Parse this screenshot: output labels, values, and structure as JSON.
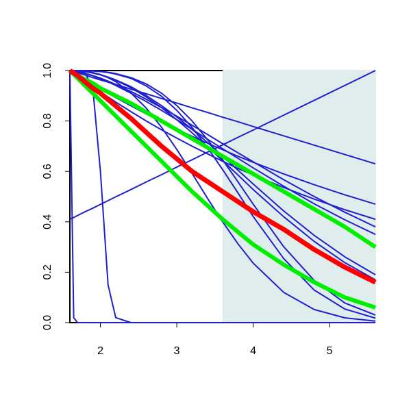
{
  "chart_data": {
    "type": "line",
    "x": [
      1.6,
      1.65,
      1.7,
      1.8,
      1.9,
      2.0,
      2.1,
      2.2,
      2.4,
      2.6,
      2.8,
      3.0,
      3.2,
      3.4,
      3.6,
      3.8,
      4.0,
      4.4,
      4.8,
      5.2,
      5.6
    ],
    "xlim": [
      1.6,
      5.6
    ],
    "ylim": [
      0,
      1
    ],
    "xticks": [
      2,
      3,
      4,
      5
    ],
    "yticks": [
      {
        "value": 0,
        "label": "0.0"
      },
      {
        "value": 0.2,
        "label": "0.2"
      },
      {
        "value": 0.4,
        "label": "0.4"
      },
      {
        "value": 0.6,
        "label": "0.6"
      },
      {
        "value": 0.8,
        "label": "0.8"
      },
      {
        "value": 1,
        "label": "1.0"
      }
    ],
    "shade": {
      "xlim": [
        3.6,
        5.6
      ],
      "color": "#e0eded"
    },
    "series": [
      {
        "color": "#1f1fd0",
        "line_width": 2,
        "values": [
          0.41,
          0.417,
          0.425,
          0.44,
          0.454,
          0.469,
          0.484,
          0.499,
          0.528,
          0.558,
          0.587,
          0.617,
          0.646,
          0.676,
          0.705,
          0.735,
          0.764,
          0.823,
          0.882,
          0.941,
          1.0
        ]
      },
      {
        "color": "#1f1fd0",
        "line_width": 2,
        "values": [
          1,
          0.995,
          0.991,
          0.982,
          0.972,
          0.963,
          0.954,
          0.945,
          0.926,
          0.908,
          0.889,
          0.871,
          0.852,
          0.834,
          0.815,
          0.797,
          0.778,
          0.741,
          0.704,
          0.667,
          0.63
        ]
      },
      {
        "color": "#1f1fd0",
        "line_width": 2,
        "values": [
          1,
          0.02,
          0,
          0,
          0,
          0,
          0,
          0,
          0,
          0,
          0,
          0,
          0,
          0,
          0,
          0,
          0,
          0,
          0,
          0,
          0
        ]
      },
      {
        "color": "#1f1fd0",
        "line_width": 2,
        "values": [
          1,
          1,
          1,
          0.99,
          0.93,
          0.6,
          0.15,
          0.02,
          0,
          0,
          0,
          0,
          0,
          0,
          0,
          0,
          0,
          0,
          0,
          0,
          0
        ]
      },
      {
        "color": "#1f1fd0",
        "line_width": 2,
        "values": [
          1,
          0.991,
          0.981,
          0.963,
          0.945,
          0.927,
          0.91,
          0.893,
          0.86,
          0.828,
          0.797,
          0.768,
          0.739,
          0.712,
          0.686,
          0.66,
          0.636,
          0.59,
          0.547,
          0.507,
          0.47
        ]
      },
      {
        "color": "#1f1fd0",
        "line_width": 2,
        "values": [
          1,
          0.989,
          0.978,
          0.956,
          0.935,
          0.915,
          0.895,
          0.875,
          0.837,
          0.8,
          0.765,
          0.732,
          0.7,
          0.67,
          0.64,
          0.612,
          0.586,
          0.536,
          0.49,
          0.448,
          0.41
        ]
      },
      {
        "color": "#1f1fd0",
        "line_width": 2,
        "values": [
          1,
          0.999,
          0.996,
          0.989,
          0.98,
          0.97,
          0.958,
          0.945,
          0.917,
          0.886,
          0.853,
          0.819,
          0.783,
          0.747,
          0.71,
          0.674,
          0.638,
          0.567,
          0.5,
          0.438,
          0.38
        ]
      },
      {
        "color": "#1f1fd0",
        "line_width": 2,
        "values": [
          1,
          0.999,
          0.996,
          0.988,
          0.979,
          0.967,
          0.955,
          0.941,
          0.91,
          0.877,
          0.842,
          0.805,
          0.767,
          0.728,
          0.69,
          0.652,
          0.614,
          0.541,
          0.471,
          0.408,
          0.35
        ]
      },
      {
        "color": "#1f1fd0",
        "line_width": 2,
        "values": [
          1,
          1,
          0.999,
          0.996,
          0.991,
          0.984,
          0.974,
          0.963,
          0.936,
          0.901,
          0.861,
          0.816,
          0.767,
          0.715,
          0.661,
          0.605,
          0.55,
          0.443,
          0.346,
          0.261,
          0.19
        ]
      },
      {
        "color": "#1f1fd0",
        "line_width": 2,
        "values": [
          1,
          1,
          0.999,
          0.996,
          0.99,
          0.983,
          0.973,
          0.961,
          0.932,
          0.895,
          0.853,
          0.805,
          0.753,
          0.699,
          0.642,
          0.586,
          0.528,
          0.42,
          0.322,
          0.238,
          0.17
        ]
      },
      {
        "color": "#1f1fd0",
        "line_width": 2,
        "values": [
          1,
          1,
          1,
          0.997,
          0.992,
          0.984,
          0.972,
          0.956,
          0.911,
          0.851,
          0.775,
          0.687,
          0.592,
          0.494,
          0.4,
          0.313,
          0.236,
          0.12,
          0.052,
          0.019,
          0.006
        ]
      },
      {
        "color": "#1f1fd0",
        "line_width": 2,
        "values": [
          1,
          1,
          1,
          1,
          0.999,
          0.997,
          0.993,
          0.988,
          0.972,
          0.947,
          0.91,
          0.861,
          0.8,
          0.727,
          0.646,
          0.559,
          0.47,
          0.301,
          0.167,
          0.078,
          0.03
        ]
      },
      {
        "color": "#1f1fd0",
        "line_width": 2,
        "values": [
          1,
          1,
          1,
          0.9995,
          0.998,
          0.996,
          0.992,
          0.986,
          0.969,
          0.939,
          0.898,
          0.842,
          0.774,
          0.695,
          0.607,
          0.515,
          0.421,
          0.254,
          0.129,
          0.054,
          0.018
        ]
      },
      {
        "color": "#00ee00",
        "line_width": 6,
        "values": [
          1,
          0.99,
          0.98,
          0.965,
          0.95,
          0.93,
          0.915,
          0.9,
          0.87,
          0.835,
          0.8,
          0.765,
          0.73,
          0.695,
          0.66,
          0.625,
          0.59,
          0.52,
          0.45,
          0.38,
          0.3
        ]
      },
      {
        "color": "#00ee00",
        "line_width": 6,
        "values": [
          1,
          0.985,
          0.97,
          0.94,
          0.91,
          0.88,
          0.85,
          0.82,
          0.76,
          0.7,
          0.64,
          0.58,
          0.52,
          0.465,
          0.41,
          0.36,
          0.31,
          0.23,
          0.16,
          0.1,
          0.06
        ]
      },
      {
        "color": "#ff0000",
        "line_width": 7,
        "values": [
          1,
          0.99,
          0.98,
          0.955,
          0.93,
          0.91,
          0.885,
          0.86,
          0.81,
          0.755,
          0.7,
          0.65,
          0.6,
          0.56,
          0.52,
          0.48,
          0.44,
          0.37,
          0.29,
          0.22,
          0.16
        ]
      }
    ]
  }
}
